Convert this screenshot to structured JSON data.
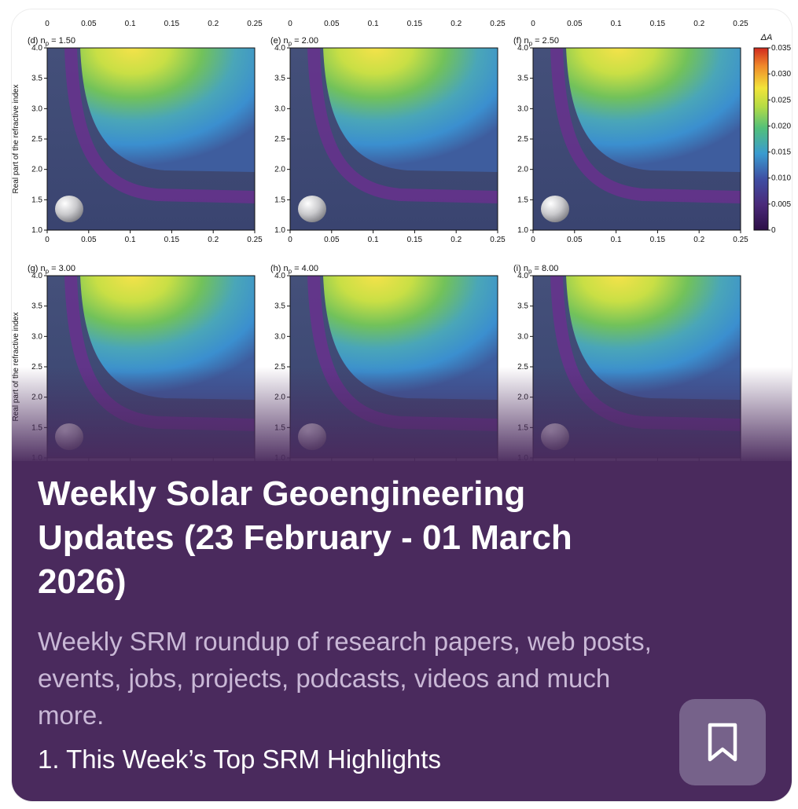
{
  "article": {
    "title": "Weekly Solar Geoengineering Updates (23 February - 01 March 2026)",
    "description": "Weekly SRM roundup of research papers, web posts, events, jobs, projects, podcasts, videos and much more.",
    "first_section": "1. This Week’s Top SRM Highlights",
    "colors": {
      "panel_background": "#4a2a5d",
      "bookmark_button": "#76628a",
      "subtitle_text": "#c9b8d6"
    }
  },
  "bookmark": {
    "icon": "bookmark-icon"
  },
  "figure": {
    "x_ticks": [
      "0",
      "0.05",
      "0.1",
      "0.15",
      "0.2",
      "0.25"
    ],
    "y_ticks": [
      "1.0",
      "1.5",
      "2.0",
      "2.5",
      "3.0",
      "3.5",
      "4.0"
    ],
    "y_axis_label": "Real part of the refractive index",
    "panels": [
      {
        "label": "(d) n",
        "sub": "p",
        "value": " = 1.50"
      },
      {
        "label": "(e) n",
        "sub": "p",
        "value": " = 2.00"
      },
      {
        "label": "(f) n",
        "sub": "p",
        "value": " = 2.50"
      },
      {
        "label": "(g) n",
        "sub": "p",
        "value": " = 3.00"
      },
      {
        "label": "(h) n",
        "sub": "p",
        "value": " = 4.00"
      },
      {
        "label": "(i) n",
        "sub": "p",
        "value": " = 8.00"
      }
    ],
    "colorbar": {
      "label": "ΔA",
      "ticks": [
        "0.035",
        "0.030",
        "0.025",
        "0.020",
        "0.015",
        "0.010",
        "0.005",
        "0"
      ],
      "colormap": "viridis-plus-red"
    }
  }
}
